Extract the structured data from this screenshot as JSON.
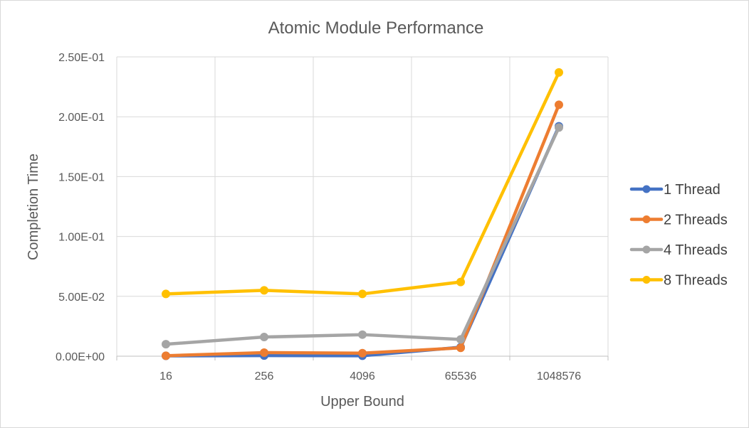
{
  "chart_data": {
    "type": "line",
    "title": "Atomic Module Performance",
    "xlabel": "Upper Bound",
    "ylabel": "Completion Time",
    "categories": [
      "16",
      "256",
      "4096",
      "65536",
      "1048576"
    ],
    "y_ticks": [
      "0.00E+00",
      "5.00E-02",
      "1.00E-01",
      "1.50E-01",
      "2.00E-01",
      "2.50E-01"
    ],
    "ylim": [
      0,
      0.25
    ],
    "grid": true,
    "legend_position": "right",
    "series": [
      {
        "name": "1 Thread",
        "color": "#4472C4",
        "values": [
          0.0003,
          0.0005,
          0.0004,
          0.0075,
          0.192
        ]
      },
      {
        "name": "2 Threads",
        "color": "#ED7D31",
        "values": [
          0.0004,
          0.003,
          0.0025,
          0.007,
          0.21
        ]
      },
      {
        "name": "4 Threads",
        "color": "#A5A5A5",
        "values": [
          0.01,
          0.016,
          0.018,
          0.014,
          0.191
        ]
      },
      {
        "name": "8 Threads",
        "color": "#FFC000",
        "values": [
          0.052,
          0.055,
          0.052,
          0.062,
          0.237
        ]
      }
    ]
  }
}
